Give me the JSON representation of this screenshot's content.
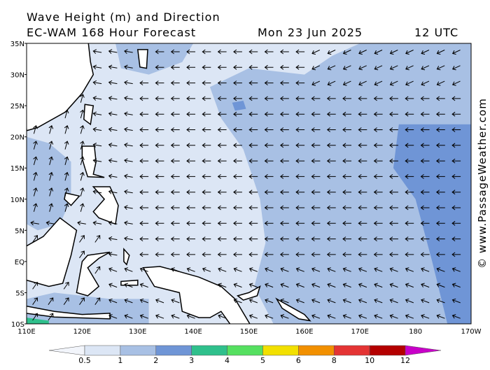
{
  "title": "Wave Height (m) and Direction",
  "subtitle": "EC-WAM 168 Hour Forecast",
  "date": "Mon 23 Jun 2025",
  "time": "12 UTC",
  "lat_labels": [
    "35N",
    "30N",
    "25N",
    "20N",
    "15N",
    "10N",
    "5N",
    "EQ",
    "5S",
    "10S"
  ],
  "lon_labels": [
    "110E",
    "120E",
    "130E",
    "140E",
    "150E",
    "160E",
    "170E",
    "180",
    "170W"
  ],
  "legend": {
    "levels": [
      0.5,
      1,
      2,
      3,
      4,
      5,
      6,
      8,
      10,
      12
    ],
    "colors": [
      "#f2f5fb",
      "#dce6f5",
      "#a8c0e4",
      "#6f95d6",
      "#2fc08c",
      "#55e060",
      "#f2e000",
      "#f29000",
      "#e43434",
      "#b40000",
      "#c800c8"
    ]
  },
  "credit": "© www.PassageWeather.com"
}
